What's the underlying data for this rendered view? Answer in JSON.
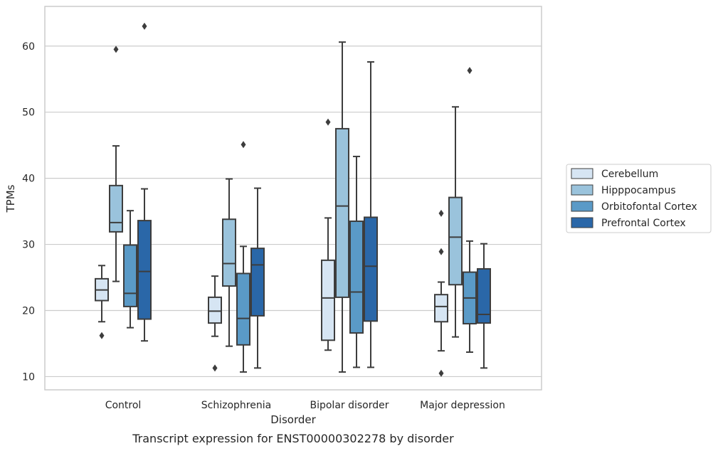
{
  "caption": "Transcript expression for ENST00000302278 by disorder",
  "chart_data": {
    "type": "boxplot",
    "xlabel": "Disorder",
    "ylabel": "TPMs",
    "ylim": [
      8,
      66
    ],
    "yticks": [
      10,
      20,
      30,
      40,
      50,
      60
    ],
    "grid": "horizontal",
    "legend_position": "right",
    "categories": [
      "Control",
      "Schizophrenia",
      "Bipolar disorder",
      "Major depression"
    ],
    "series": [
      {
        "name": "Cerebellum",
        "color": "#d6e5f3",
        "boxes": [
          {
            "whislo": 18.3,
            "q1": 21.5,
            "med": 23.1,
            "q3": 24.8,
            "whishi": 26.8,
            "fliers": [
              16.2
            ]
          },
          {
            "whislo": 16.1,
            "q1": 18.1,
            "med": 19.9,
            "q3": 22.0,
            "whishi": 25.2,
            "fliers": [
              11.3
            ]
          },
          {
            "whislo": 14.0,
            "q1": 15.5,
            "med": 21.9,
            "q3": 27.6,
            "whishi": 34.0,
            "fliers": [
              48.5
            ]
          },
          {
            "whislo": 13.9,
            "q1": 18.3,
            "med": 20.6,
            "q3": 22.4,
            "whishi": 24.3,
            "fliers": [
              10.5,
              28.9,
              34.7
            ]
          }
        ]
      },
      {
        "name": "Hipppocampus",
        "color": "#9ac3dc",
        "boxes": [
          {
            "whislo": 24.4,
            "q1": 31.9,
            "med": 33.3,
            "q3": 38.9,
            "whishi": 44.9,
            "fliers": [
              59.5
            ]
          },
          {
            "whislo": 14.6,
            "q1": 23.7,
            "med": 27.1,
            "q3": 33.8,
            "whishi": 39.9,
            "fliers": []
          },
          {
            "whislo": 10.7,
            "q1": 22.0,
            "med": 35.8,
            "q3": 47.5,
            "whishi": 60.6,
            "fliers": []
          },
          {
            "whislo": 16.0,
            "q1": 23.9,
            "med": 31.1,
            "q3": 37.1,
            "whishi": 50.8,
            "fliers": []
          }
        ]
      },
      {
        "name": "Orbitofontal Cortex",
        "color": "#5a9ac7",
        "boxes": [
          {
            "whislo": 17.4,
            "q1": 20.6,
            "med": 22.6,
            "q3": 29.9,
            "whishi": 35.1,
            "fliers": []
          },
          {
            "whislo": 10.7,
            "q1": 14.8,
            "med": 18.8,
            "q3": 25.6,
            "whishi": 29.7,
            "fliers": [
              45.1
            ]
          },
          {
            "whislo": 11.4,
            "q1": 16.6,
            "med": 22.8,
            "q3": 33.5,
            "whishi": 43.3,
            "fliers": []
          },
          {
            "whislo": 13.7,
            "q1": 18.0,
            "med": 21.9,
            "q3": 25.8,
            "whishi": 30.5,
            "fliers": [
              56.3
            ]
          }
        ]
      },
      {
        "name": "Prefrontal Cortex",
        "color": "#2a67a8",
        "boxes": [
          {
            "whislo": 15.4,
            "q1": 18.7,
            "med": 25.9,
            "q3": 33.6,
            "whishi": 38.4,
            "fliers": [
              63.0
            ]
          },
          {
            "whislo": 11.3,
            "q1": 19.2,
            "med": 26.9,
            "q3": 29.4,
            "whishi": 38.5,
            "fliers": []
          },
          {
            "whislo": 11.4,
            "q1": 18.4,
            "med": 26.7,
            "q3": 34.1,
            "whishi": 57.6,
            "fliers": []
          },
          {
            "whislo": 11.3,
            "q1": 18.1,
            "med": 19.4,
            "q3": 26.3,
            "whishi": 30.1,
            "fliers": []
          }
        ]
      }
    ]
  }
}
